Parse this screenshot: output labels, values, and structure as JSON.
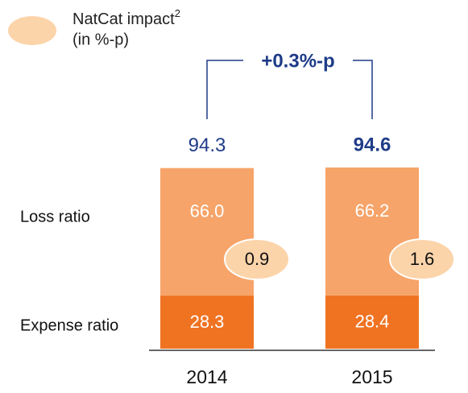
{
  "chart_data": {
    "type": "stacked_bar",
    "categories": [
      "2014",
      "2015"
    ],
    "series": [
      {
        "name": "Expense ratio",
        "color": "#f07322",
        "values": [
          28.3,
          28.4
        ]
      },
      {
        "name": "Loss ratio",
        "color": "#f6a469",
        "values": [
          66.0,
          66.2
        ],
        "value_labels": [
          "66.0",
          "66.2"
        ]
      }
    ],
    "totals": [
      94.3,
      94.6
    ],
    "natcat": {
      "name": "NatCat impact",
      "footnote": "2",
      "unit_note": "(in %-p)",
      "color": "#fcd4aa",
      "values": [
        0.9,
        1.6
      ]
    },
    "annotation": "+0.3%-p",
    "ylim": [
      0,
      100
    ]
  }
}
